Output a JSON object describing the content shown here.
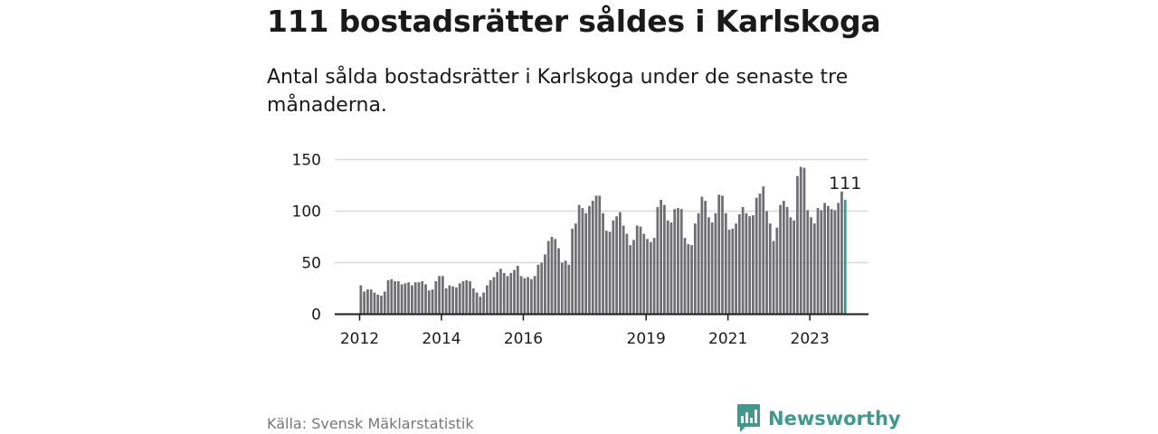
{
  "title": "111 bostadsrätter såldes i Karlskoga",
  "subtitle": "Antal sålda bostadsrätter i Karlskoga under de senaste tre månaderna.",
  "source": "Källa: Svensk Mäklarstatistik",
  "brand": {
    "name": "Newsworthy",
    "icon": "newsworthy-logo-icon"
  },
  "colors": {
    "bar": "#6f6e73",
    "highlight": "#2a9d8f",
    "grid": "#d9d9d9",
    "axis": "#1a1a1a",
    "brand": "#3e9a8d"
  },
  "chart_data": {
    "type": "bar",
    "title": "111 bostadsrätter såldes i Karlskoga",
    "xlabel": "",
    "ylabel": "",
    "ylim": [
      0,
      150
    ],
    "yticks": [
      0,
      50,
      100,
      150
    ],
    "xticks": [
      "2012",
      "2014",
      "2016",
      "2019",
      "2021",
      "2023"
    ],
    "grid": true,
    "annotation": {
      "label": "111",
      "target": "last"
    },
    "series": [
      {
        "values": [
          28,
          22,
          24,
          24,
          21,
          19,
          18,
          22,
          33,
          34,
          32,
          32,
          29,
          30,
          31,
          28,
          31,
          31,
          32,
          29,
          23,
          24,
          32,
          37,
          37,
          25,
          28,
          27,
          26,
          30,
          32,
          33,
          32,
          25,
          21,
          17,
          21,
          28,
          33,
          36,
          41,
          44,
          40,
          37,
          40,
          43,
          47,
          37,
          35,
          36,
          34,
          37,
          48,
          50,
          58,
          71,
          75,
          73,
          64,
          50,
          52,
          48,
          83,
          88,
          106,
          103,
          98,
          105,
          110,
          115,
          115,
          98,
          81,
          80,
          91,
          95,
          99,
          86,
          78,
          67,
          72,
          86,
          85,
          78,
          73,
          70,
          74,
          104,
          111,
          106,
          91,
          89,
          102,
          103,
          102,
          74,
          68,
          67,
          88,
          98,
          114,
          110,
          94,
          89,
          98,
          116,
          115,
          98,
          82,
          83,
          88,
          97,
          104,
          98,
          95,
          96,
          113,
          117,
          124,
          100,
          88,
          71,
          84,
          106,
          110,
          104,
          94,
          91,
          134,
          143,
          142,
          101,
          94,
          88,
          103,
          101,
          108,
          105,
          102,
          101,
          108,
          119,
          111
        ]
      }
    ]
  }
}
